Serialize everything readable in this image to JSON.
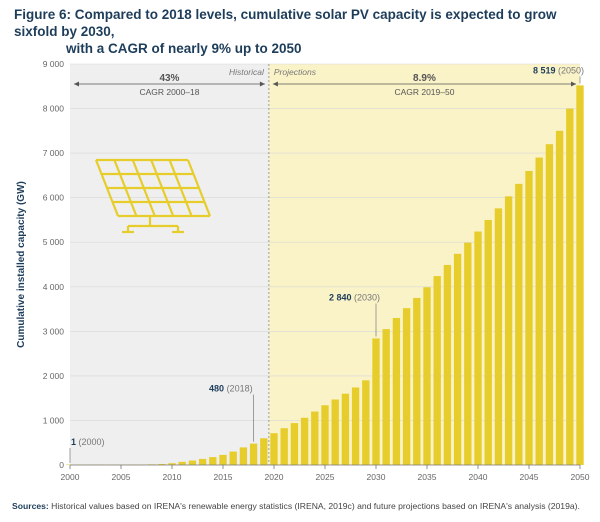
{
  "title": {
    "line1": "Figure 6: Compared to 2018 levels, cumulative solar PV capacity is expected to grow sixfold by 2030,",
    "line2": "with a CAGR of nearly 9% up to 2050"
  },
  "chart_data": {
    "type": "bar",
    "ylabel": "Cumulative installed capacity (GW)",
    "ylim": [
      0,
      9000
    ],
    "yticks": [
      "0",
      "1 000",
      "2 000",
      "3 000",
      "4 000",
      "5 000",
      "6 000",
      "7 000",
      "8 000",
      "9 000"
    ],
    "xticks": [
      "2000",
      "2005",
      "2010",
      "2015",
      "2020",
      "2025",
      "2030",
      "2035",
      "2040",
      "2045",
      "2050"
    ],
    "x": [
      2000,
      2001,
      2002,
      2003,
      2004,
      2005,
      2006,
      2007,
      2008,
      2009,
      2010,
      2011,
      2012,
      2013,
      2014,
      2015,
      2016,
      2017,
      2018,
      2019,
      2020,
      2021,
      2022,
      2023,
      2024,
      2025,
      2026,
      2027,
      2028,
      2029,
      2030,
      2031,
      2032,
      2033,
      2034,
      2035,
      2036,
      2037,
      2038,
      2039,
      2040,
      2041,
      2042,
      2043,
      2044,
      2045,
      2046,
      2047,
      2048,
      2049,
      2050
    ],
    "values": [
      1,
      2,
      2,
      3,
      4,
      5,
      7,
      9,
      15,
      23,
      40,
      71,
      100,
      137,
      178,
      227,
      302,
      395,
      480,
      600,
      714,
      825,
      940,
      1060,
      1200,
      1340,
      1470,
      1600,
      1740,
      1900,
      2840,
      3050,
      3300,
      3520,
      3750,
      3990,
      4240,
      4490,
      4740,
      4990,
      5240,
      5500,
      5760,
      6030,
      6310,
      6600,
      6900,
      7200,
      7500,
      8000,
      8519
    ],
    "historical_label": "Historical",
    "projections_label": "Projections",
    "cagr_historical": {
      "rate": "43%",
      "period": "CAGR 2000–18"
    },
    "cagr_projection": {
      "rate": "8.9%",
      "period": "CAGR 2019–50"
    },
    "annotations": [
      {
        "year": 2000,
        "bold": "1",
        "rest": " (2000)",
        "value": 1
      },
      {
        "year": 2018,
        "bold": "480",
        "rest": " (2018)",
        "value": 480
      },
      {
        "year": 2030,
        "bold": "2 840",
        "rest": " (2030)",
        "value": 2840
      },
      {
        "year": 2050,
        "bold": "8 519",
        "rest": " (2050)",
        "value": 8519
      }
    ],
    "colors": {
      "bar": "#e6cd2b",
      "historical_bg": "#efefef",
      "projection_bg": "#faf3c8",
      "axis_text": "#666666",
      "dark_text": "#1d3d5a"
    },
    "icon": "solar-panel-icon"
  },
  "sources": {
    "label": "Sources:",
    "text": "Historical values based on IRENA's renewable energy statistics (IRENA, 2019c) and future projections based on IRENA's analysis (2019a)."
  }
}
